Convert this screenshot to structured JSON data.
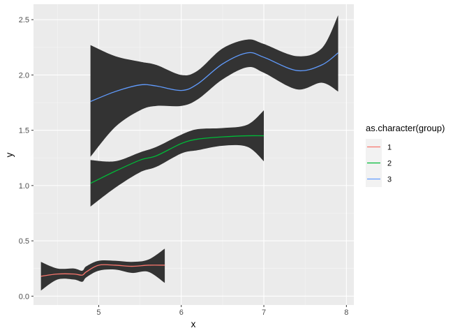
{
  "chart_data": {
    "type": "line",
    "title": "",
    "xlabel": "x",
    "ylabel": "y",
    "xlim": [
      4.21,
      8.09
    ],
    "ylim": [
      -0.08,
      2.64
    ],
    "x_ticks": [
      5,
      6,
      7,
      8
    ],
    "x_tick_labels": [
      "5",
      "6",
      "7",
      "8"
    ],
    "y_ticks": [
      0.0,
      0.5,
      1.0,
      1.5,
      2.0,
      2.5
    ],
    "y_tick_labels": [
      "0.0",
      "0.5",
      "1.0",
      "1.5",
      "2.0",
      "2.5"
    ],
    "grid": true,
    "legend": {
      "title": "as.character(group)",
      "position": "right",
      "entries": [
        {
          "label": "1",
          "color": "#F8766D"
        },
        {
          "label": "2",
          "color": "#00BA38"
        },
        {
          "label": "3",
          "color": "#619CFF"
        }
      ]
    },
    "ribbon_color": "#333333",
    "series": [
      {
        "name": "1",
        "color": "#F8766D",
        "x": [
          4.3,
          4.5,
          4.7,
          4.8,
          4.85,
          5.0,
          5.2,
          5.4,
          5.6,
          5.8
        ],
        "y": [
          0.18,
          0.2,
          0.2,
          0.19,
          0.22,
          0.28,
          0.28,
          0.27,
          0.28,
          0.28
        ],
        "ymin": [
          0.05,
          0.15,
          0.15,
          0.13,
          0.17,
          0.23,
          0.24,
          0.21,
          0.22,
          0.12
        ],
        "ymax": [
          0.31,
          0.25,
          0.25,
          0.23,
          0.27,
          0.32,
          0.32,
          0.31,
          0.33,
          0.43
        ]
      },
      {
        "name": "2",
        "color": "#00BA38",
        "x": [
          4.9,
          5.2,
          5.5,
          5.7,
          6.0,
          6.2,
          6.5,
          6.8,
          7.0
        ],
        "y": [
          1.02,
          1.13,
          1.23,
          1.27,
          1.38,
          1.42,
          1.44,
          1.45,
          1.45
        ],
        "ymin": [
          0.81,
          0.98,
          1.12,
          1.17,
          1.29,
          1.32,
          1.36,
          1.35,
          1.22
        ],
        "ymax": [
          1.23,
          1.22,
          1.3,
          1.35,
          1.46,
          1.51,
          1.52,
          1.55,
          1.68
        ]
      },
      {
        "name": "3",
        "color": "#619CFF",
        "x": [
          4.9,
          5.2,
          5.5,
          5.7,
          6.0,
          6.2,
          6.5,
          6.8,
          7.0,
          7.4,
          7.7,
          7.9
        ],
        "y": [
          1.76,
          1.85,
          1.91,
          1.9,
          1.86,
          1.92,
          2.1,
          2.2,
          2.16,
          2.04,
          2.09,
          2.2
        ],
        "ymin": [
          1.26,
          1.53,
          1.68,
          1.72,
          1.72,
          1.78,
          1.96,
          2.07,
          2.02,
          1.87,
          1.93,
          1.85
        ],
        "ymax": [
          2.27,
          2.17,
          2.12,
          2.09,
          2.0,
          2.04,
          2.24,
          2.32,
          2.28,
          2.17,
          2.24,
          2.54
        ]
      }
    ]
  }
}
